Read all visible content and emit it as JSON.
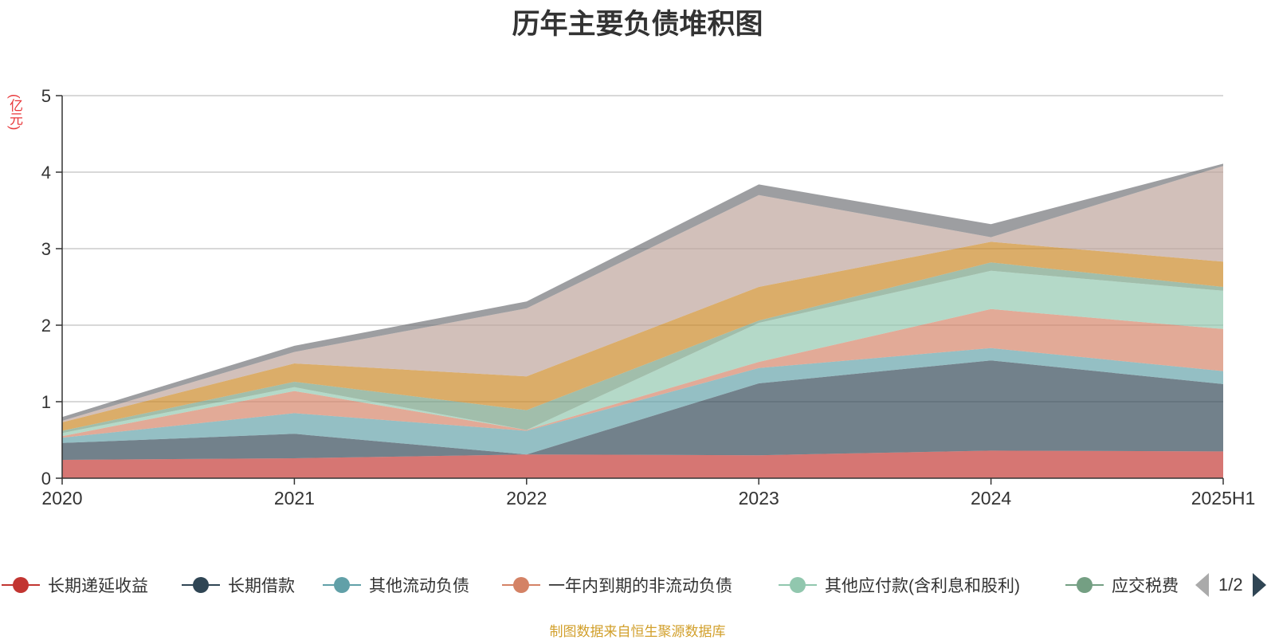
{
  "chart_data": {
    "type": "area",
    "stacked": true,
    "title": "历年主要负债堆积图",
    "unit_label": "(亿元)",
    "categories": [
      "2020",
      "2021",
      "2022",
      "2023",
      "2024",
      "2025H1"
    ],
    "ylim": [
      0,
      5
    ],
    "yticks": [
      "0",
      "1",
      "2",
      "3",
      "4",
      "5"
    ],
    "grid": true,
    "series": [
      {
        "name": "长期递延收益",
        "color": "#c23531",
        "values": [
          0.24,
          0.26,
          0.31,
          0.3,
          0.36,
          0.35
        ]
      },
      {
        "name": "长期借款",
        "color": "#2f4554",
        "values": [
          0.22,
          0.32,
          0.0,
          0.94,
          1.18,
          0.88
        ]
      },
      {
        "name": "其他流动负债",
        "color": "#61a0a8",
        "values": [
          0.07,
          0.27,
          0.31,
          0.2,
          0.16,
          0.17
        ]
      },
      {
        "name": "一年内到期的非流动负债",
        "color": "#d48265",
        "values": [
          0.02,
          0.29,
          0.01,
          0.08,
          0.51,
          0.55
        ]
      },
      {
        "name": "其他应付款(含利息和股利)",
        "color": "#91c7ae",
        "values": [
          0.04,
          0.05,
          0.0,
          0.51,
          0.5,
          0.5
        ]
      },
      {
        "name": "应交税费",
        "color": "#749f83",
        "values": [
          0.03,
          0.07,
          0.26,
          0.03,
          0.11,
          0.05
        ]
      },
      {
        "name": "",
        "color": "#ca8622",
        "values": [
          0.11,
          0.24,
          0.44,
          0.44,
          0.27,
          0.33
        ]
      },
      {
        "name": "",
        "color": "#bda29a",
        "values": [
          0.02,
          0.15,
          0.89,
          1.2,
          0.06,
          1.25
        ]
      },
      {
        "name": "",
        "color": "#6e7074",
        "values": [
          0.05,
          0.08,
          0.09,
          0.14,
          0.17,
          0.03
        ]
      }
    ]
  },
  "legend": {
    "page": "1/2"
  },
  "source_note": "制图数据来自恒生聚源数据库"
}
